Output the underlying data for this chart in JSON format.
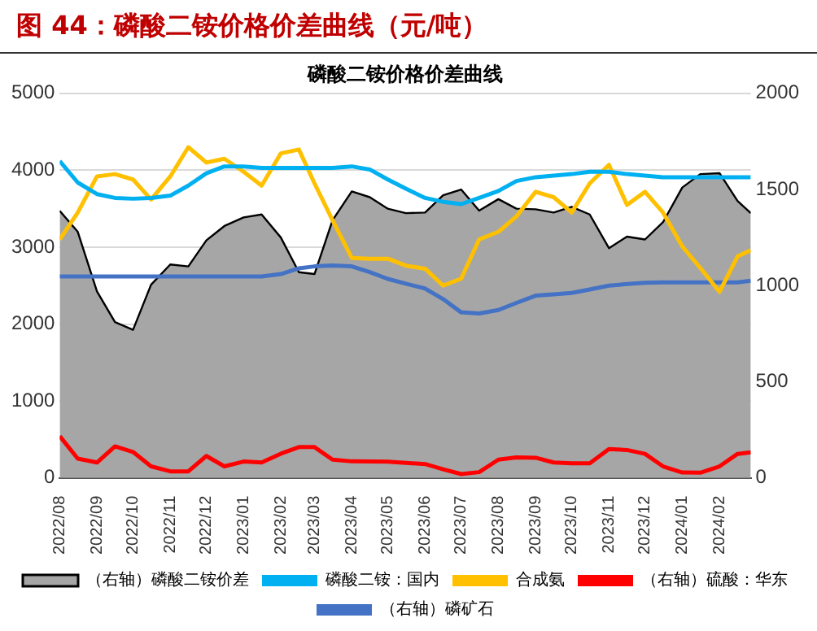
{
  "chart_data": {
    "type": "line",
    "title": "图 44：磷酸二铵价格价差曲线（元/吨）",
    "subtitle": "磷酸二铵价格价差曲线",
    "x": [
      "2022-08-01",
      "2022-08-16",
      "2022-09-01",
      "2022-09-16",
      "2022-10-01",
      "2022-10-16",
      "2022-11-01",
      "2022-11-16",
      "2022-12-01",
      "2022-12-16",
      "2023-01-01",
      "2023-01-16",
      "2023-02-01",
      "2023-02-16",
      "2023-03-01",
      "2023-03-16",
      "2023-04-01",
      "2023-04-16",
      "2023-05-01",
      "2023-05-16",
      "2023-06-01",
      "2023-06-16",
      "2023-07-01",
      "2023-07-16",
      "2023-08-01",
      "2023-08-16",
      "2023-09-01",
      "2023-09-16",
      "2023-10-01",
      "2023-10-16",
      "2023-11-01",
      "2023-11-16",
      "2023-12-01",
      "2023-12-16",
      "2024-01-01",
      "2024-01-16",
      "2024-02-01",
      "2024-02-16",
      "2024-02-27"
    ],
    "series": [
      {
        "name": "（右轴）磷酸二铵价差",
        "type": "area",
        "axis": "y2",
        "color": "#a6a6a6",
        "values": [
          1389,
          1280,
          970,
          810,
          770,
          1005,
          1110,
          1100,
          1235,
          1310,
          1355,
          1370,
          1250,
          1070,
          1060,
          1340,
          1490,
          1460,
          1400,
          1377,
          1380,
          1470,
          1500,
          1390,
          1450,
          1400,
          1397,
          1380,
          1410,
          1370,
          1195,
          1255,
          1240,
          1330,
          1510,
          1580,
          1585,
          1440,
          1377
        ]
      },
      {
        "name": "磷酸二铵：国内",
        "color": "#00b0f0",
        "values": [
          4120,
          3840,
          3690,
          3640,
          3630,
          3640,
          3670,
          3800,
          3960,
          4050,
          4050,
          4030,
          4030,
          4030,
          4030,
          4030,
          4050,
          4010,
          3880,
          3760,
          3640,
          3590,
          3560,
          3640,
          3730,
          3860,
          3910,
          3930,
          3950,
          3980,
          3980,
          3950,
          3930,
          3910,
          3910,
          3910,
          3910,
          3910,
          3910
        ]
      },
      {
        "name": "合成氨",
        "color": "#ffc000",
        "values": [
          3100,
          3450,
          3920,
          3950,
          3880,
          3620,
          3920,
          4300,
          4100,
          4150,
          3980,
          3800,
          4220,
          4270,
          3830,
          3350,
          2860,
          2850,
          2850,
          2760,
          2720,
          2500,
          2590,
          3100,
          3200,
          3400,
          3720,
          3650,
          3450,
          3830,
          4070,
          3550,
          3720,
          3450,
          3010,
          2730,
          2420,
          2880,
          2960
        ]
      },
      {
        "name": "（右轴）硫酸：华东",
        "axis": "y2",
        "color": "#ff0000",
        "values": [
          217,
          100,
          80,
          164,
          135,
          60,
          34,
          34,
          114,
          60,
          85,
          80,
          126,
          160,
          160,
          95,
          86,
          85,
          84,
          78,
          72,
          45,
          20,
          30,
          95,
          107,
          105,
          80,
          76,
          76,
          150,
          145,
          125,
          60,
          28,
          27,
          60,
          125,
          133
        ]
      },
      {
        "name": "（右轴）磷矿石",
        "axis": "y2",
        "color": "#4472c4",
        "values": [
          1048,
          1048,
          1048,
          1048,
          1048,
          1048,
          1048,
          1048,
          1048,
          1048,
          1048,
          1048,
          1060,
          1090,
          1100,
          1105,
          1100,
          1070,
          1035,
          1010,
          985,
          930,
          861,
          855,
          873,
          910,
          948,
          955,
          962,
          980,
          1000,
          1008,
          1015,
          1017,
          1017,
          1017,
          1017,
          1017,
          1025
        ]
      }
    ],
    "xlim": [
      "2022-08-01",
      "2024-02-27"
    ],
    "xticks": [
      {
        "value": "2022-08-01",
        "label": "2022/08"
      },
      {
        "value": "2022-09-01",
        "label": "2022/09"
      },
      {
        "value": "2022-10-01",
        "label": "2022/10"
      },
      {
        "value": "2022-11-01",
        "label": "2022/11"
      },
      {
        "value": "2022-12-01",
        "label": "2022/12"
      },
      {
        "value": "2023-01-01",
        "label": "2023/01"
      },
      {
        "value": "2023-02-01",
        "label": "2023/02"
      },
      {
        "value": "2023-03-01",
        "label": "2023/03"
      },
      {
        "value": "2023-04-01",
        "label": "2023/04"
      },
      {
        "value": "2023-05-01",
        "label": "2023/05"
      },
      {
        "value": "2023-06-01",
        "label": "2023/06"
      },
      {
        "value": "2023-07-01",
        "label": "2023/07"
      },
      {
        "value": "2023-08-01",
        "label": "2023/08"
      },
      {
        "value": "2023-09-01",
        "label": "2023/09"
      },
      {
        "value": "2023-10-01",
        "label": "2023/10"
      },
      {
        "value": "2023-11-01",
        "label": "2023/11"
      },
      {
        "value": "2023-12-01",
        "label": "2023/12"
      },
      {
        "value": "2024-01-01",
        "label": "2024/01"
      },
      {
        "value": "2024-02-01",
        "label": "2024/02"
      }
    ],
    "ylim": [
      0,
      5000
    ],
    "yticks": [
      0,
      1000,
      2000,
      3000,
      4000,
      5000
    ],
    "y2lim": [
      0,
      2000
    ],
    "y2ticks": [
      0,
      500,
      1000,
      1500,
      2000
    ],
    "grid": "y",
    "legend": "bottom",
    "marker": "none",
    "line_style": "solid"
  }
}
